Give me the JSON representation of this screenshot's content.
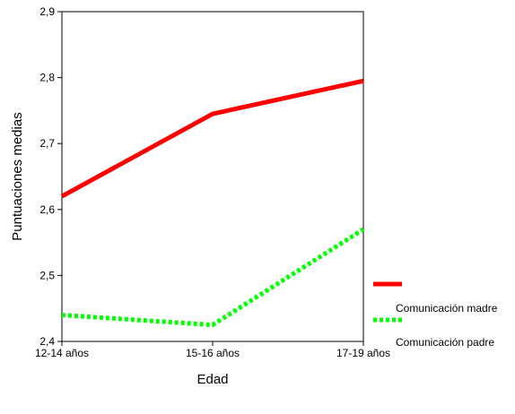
{
  "chart_data": {
    "type": "line",
    "title": "",
    "xlabel": "Edad",
    "ylabel": "Puntuaciones medias",
    "categories": [
      "12-14 años",
      "15-16 años",
      "17-19 años"
    ],
    "yticks": [
      "2,4",
      "2,5",
      "2,6",
      "2,7",
      "2,8",
      "2,9"
    ],
    "ylim": [
      2.4,
      2.9
    ],
    "grid": false,
    "legend_position": "right",
    "series": [
      {
        "name": "Comunicación madre",
        "values": [
          2.62,
          2.745,
          2.795
        ],
        "color": "#ff0000",
        "style": "solid"
      },
      {
        "name": "Comunicación padre",
        "values": [
          2.44,
          2.425,
          2.57
        ],
        "color": "#00ff00",
        "style": "dotted"
      }
    ]
  }
}
